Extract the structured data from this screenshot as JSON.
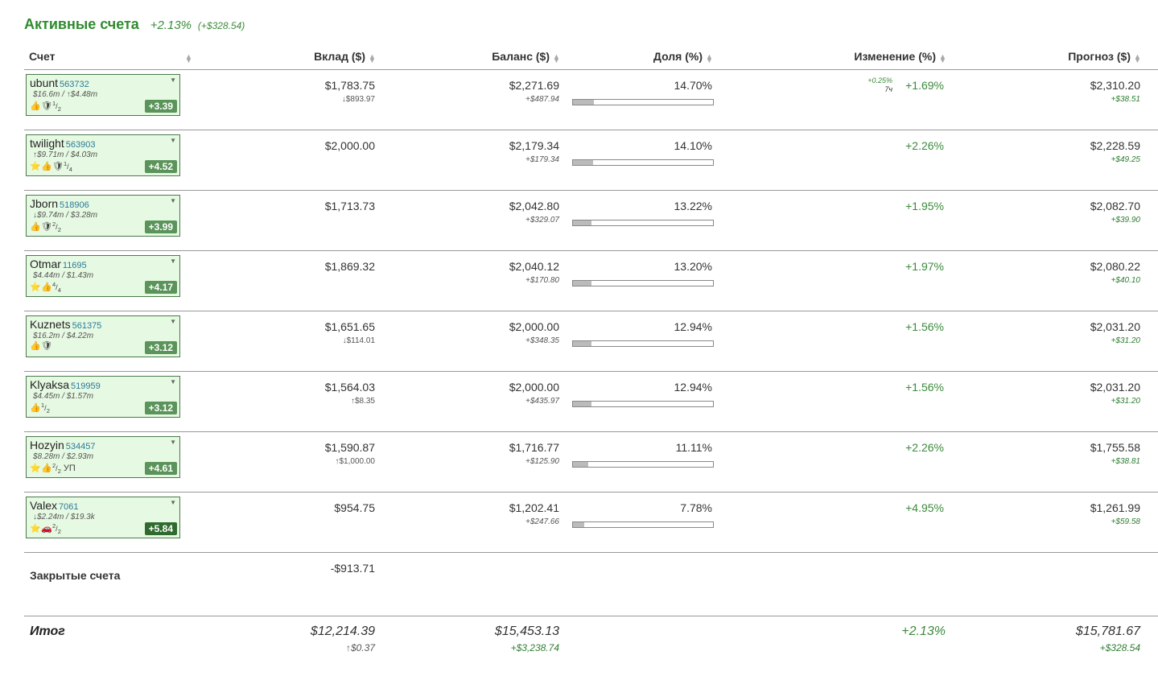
{
  "header": {
    "title": "Активные счета",
    "change_pct": "+2.13%",
    "change_abs": "(+$328.54)"
  },
  "columns": {
    "account": "Счет",
    "deposit": "Вклад ($)",
    "balance": "Баланс ($)",
    "share": "Доля (%)",
    "change": "Изменение (%)",
    "forecast": "Прогноз ($)"
  },
  "rows": [
    {
      "name": "ubunt",
      "id": "563732",
      "volume": "$16.6m / ↑$4.48m",
      "icons": [
        "thumbs-up-icon",
        "shield-icon"
      ],
      "frac_num": "1",
      "frac_den": "2",
      "frac_suffix": "",
      "score": "+3.39",
      "score_dark": false,
      "deposit": "$1,783.75",
      "deposit_sub": "↓$893.97",
      "balance": "$2,271.69",
      "balance_sub": "+$487.94",
      "share": "14.70%",
      "share_fraction": 0.147,
      "change_extra": "+0.25%",
      "change_extra_time": "7ч",
      "change": "+1.69%",
      "forecast": "$2,310.20",
      "forecast_sub": "+$38.51"
    },
    {
      "name": "twilight",
      "id": "563903",
      "volume": "↑$9.71m / $4.03m",
      "icons": [
        "star-icon",
        "thumbs-up-icon",
        "shield-icon"
      ],
      "frac_num": "1",
      "frac_den": "4",
      "frac_suffix": "",
      "score": "+4.52",
      "score_dark": false,
      "deposit": "$2,000.00",
      "deposit_sub": "",
      "balance": "$2,179.34",
      "balance_sub": "+$179.34",
      "share": "14.10%",
      "share_fraction": 0.141,
      "change_extra": "",
      "change_extra_time": "",
      "change": "+2.26%",
      "forecast": "$2,228.59",
      "forecast_sub": "+$49.25"
    },
    {
      "name": "Jborn",
      "id": "518906",
      "volume": "↓$9.74m / $3.28m",
      "icons": [
        "thumbs-up-icon",
        "shield-icon"
      ],
      "frac_num": "2",
      "frac_den": "2",
      "frac_suffix": "",
      "score": "+3.99",
      "score_dark": false,
      "deposit": "$1,713.73",
      "deposit_sub": "",
      "balance": "$2,042.80",
      "balance_sub": "+$329.07",
      "share": "13.22%",
      "share_fraction": 0.1322,
      "change_extra": "",
      "change_extra_time": "",
      "change": "+1.95%",
      "forecast": "$2,082.70",
      "forecast_sub": "+$39.90"
    },
    {
      "name": "Otmar",
      "id": "11695",
      "volume": "$4.44m / $1.43m",
      "icons": [
        "star-icon",
        "thumbs-up-icon"
      ],
      "frac_num": "4",
      "frac_den": "4",
      "frac_suffix": "",
      "score": "+4.17",
      "score_dark": false,
      "deposit": "$1,869.32",
      "deposit_sub": "",
      "balance": "$2,040.12",
      "balance_sub": "+$170.80",
      "share": "13.20%",
      "share_fraction": 0.132,
      "change_extra": "",
      "change_extra_time": "",
      "change": "+1.97%",
      "forecast": "$2,080.22",
      "forecast_sub": "+$40.10"
    },
    {
      "name": "Kuznets",
      "id": "561375",
      "volume": "$16.2m / $4.22m",
      "icons": [
        "thumbs-up-icon",
        "shield-icon"
      ],
      "frac_num": "",
      "frac_den": "",
      "frac_suffix": "",
      "score": "+3.12",
      "score_dark": false,
      "deposit": "$1,651.65",
      "deposit_sub": "↓$114.01",
      "balance": "$2,000.00",
      "balance_sub": "+$348.35",
      "share": "12.94%",
      "share_fraction": 0.1294,
      "change_extra": "",
      "change_extra_time": "",
      "change": "+1.56%",
      "forecast": "$2,031.20",
      "forecast_sub": "+$31.20"
    },
    {
      "name": "Klyaksa",
      "id": "519959",
      "volume": "$4.45m / $1.57m",
      "icons": [
        "thumbs-up-icon"
      ],
      "frac_num": "1",
      "frac_den": "2",
      "frac_suffix": "",
      "score": "+3.12",
      "score_dark": false,
      "deposit": "$1,564.03",
      "deposit_sub": "↑$8.35",
      "balance": "$2,000.00",
      "balance_sub": "+$435.97",
      "share": "12.94%",
      "share_fraction": 0.1294,
      "change_extra": "",
      "change_extra_time": "",
      "change": "+1.56%",
      "forecast": "$2,031.20",
      "forecast_sub": "+$31.20"
    },
    {
      "name": "Hozyin",
      "id": "534457",
      "volume": "$8.28m / $2.93m",
      "icons": [
        "star-icon",
        "thumbs-up-icon"
      ],
      "frac_num": "2",
      "frac_den": "2",
      "frac_suffix": "УП",
      "score": "+4.61",
      "score_dark": false,
      "deposit": "$1,590.87",
      "deposit_sub": "↑$1,000.00",
      "balance": "$1,716.77",
      "balance_sub": "+$125.90",
      "share": "11.11%",
      "share_fraction": 0.1111,
      "change_extra": "",
      "change_extra_time": "",
      "change": "+2.26%",
      "forecast": "$1,755.58",
      "forecast_sub": "+$38.81"
    },
    {
      "name": "Valex",
      "id": "7061",
      "volume": "↓$2.24m / $19.3k",
      "icons": [
        "star-icon",
        "car-icon"
      ],
      "frac_num": "2",
      "frac_den": "2",
      "frac_suffix": "",
      "score": "+5.84",
      "score_dark": true,
      "deposit": "$954.75",
      "deposit_sub": "",
      "balance": "$1,202.41",
      "balance_sub": "+$247.66",
      "share": "7.78%",
      "share_fraction": 0.0778,
      "change_extra": "",
      "change_extra_time": "",
      "change": "+4.95%",
      "forecast": "$1,261.99",
      "forecast_sub": "+$59.58"
    }
  ],
  "closed": {
    "label": "Закрытые счета",
    "deposit": "-$913.71"
  },
  "total": {
    "label": "Итог",
    "deposit": "$12,214.39",
    "deposit_sub": "↑$0.37",
    "balance": "$15,453.13",
    "balance_sub": "+$3,238.74",
    "change": "+2.13%",
    "forecast": "$15,781.67",
    "forecast_sub": "+$328.54"
  },
  "icon_glyphs": {
    "thumbs-up-icon": "👍",
    "shield-icon": "🛡",
    "star-icon": "⭐",
    "car-icon": "🚗"
  },
  "colors": {
    "card_bg": "#e6f9e2",
    "score_bg": "#5b945b",
    "positive": "#3c8a3c",
    "title": "#2e8b2e"
  }
}
